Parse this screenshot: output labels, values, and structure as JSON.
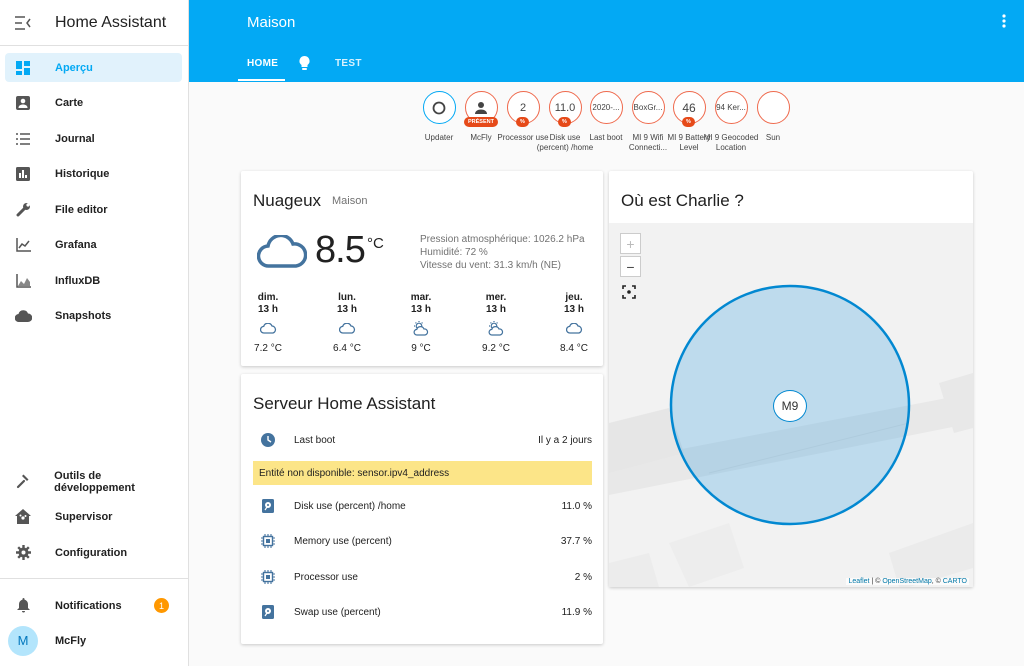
{
  "app": {
    "title": "Home Assistant"
  },
  "sidebar": {
    "items": [
      {
        "label": "Aperçu",
        "icon": "dashboard-icon"
      },
      {
        "label": "Carte",
        "icon": "account-box-icon"
      },
      {
        "label": "Journal",
        "icon": "list-icon"
      },
      {
        "label": "Historique",
        "icon": "chart-bar-icon"
      },
      {
        "label": "File editor",
        "icon": "wrench-icon"
      },
      {
        "label": "Grafana",
        "icon": "chart-line-icon"
      },
      {
        "label": "InfluxDB",
        "icon": "chart-area-icon"
      },
      {
        "label": "Snapshots",
        "icon": "cloud-icon"
      }
    ],
    "bottom": [
      {
        "label": "Outils de développement",
        "icon": "hammer-icon"
      },
      {
        "label": "Supervisor",
        "icon": "home-assistant-icon"
      },
      {
        "label": "Configuration",
        "icon": "cog-icon"
      }
    ],
    "notifications": {
      "label": "Notifications",
      "count": "1"
    },
    "user": {
      "label": "McFly",
      "initial": "M"
    }
  },
  "header": {
    "title": "Maison",
    "tabs": [
      {
        "label": "HOME"
      },
      {
        "label": "lightbulb-icon"
      },
      {
        "label": "TEST"
      }
    ]
  },
  "badges": [
    {
      "value": "",
      "icon": "circle-outline-icon",
      "name": "Updater",
      "chip": ""
    },
    {
      "value": "",
      "icon": "person-icon",
      "name": "McFly",
      "chip": "PRÉSENT"
    },
    {
      "value": "2",
      "name": "Processor use",
      "chip": "%"
    },
    {
      "value": "11.0",
      "name": "Disk use (percent) /home",
      "chip": "%"
    },
    {
      "value": "2020-...",
      "name": "Last boot",
      "chip": ""
    },
    {
      "value": "BoxGr...",
      "name": "MI 9 Wifi Connecti...",
      "chip": ""
    },
    {
      "value": "46",
      "name": "MI 9 Battery Level",
      "chip": "%"
    },
    {
      "value": "94 Ker...",
      "name": "MI 9 Geocoded Location",
      "chip": ""
    },
    {
      "value": "",
      "icon": "moon-icon",
      "name": "Sun",
      "chip": ""
    }
  ],
  "weather": {
    "condition": "Nuageux",
    "location": "Maison",
    "temperature": "8.5",
    "unit": "°C",
    "attributes": [
      "Pression atmosphérique: 1026.2 hPa",
      "Humidité: 72 %",
      "Vitesse du vent: 31.3 km/h (NE)"
    ],
    "forecast": [
      {
        "day": "dim.",
        "hour": "13 h",
        "icon": "cloudy-icon",
        "temp": "7.2 °C"
      },
      {
        "day": "lun.",
        "hour": "13 h",
        "icon": "cloudy-icon",
        "temp": "6.4 °C"
      },
      {
        "day": "mar.",
        "hour": "13 h",
        "icon": "partly-cloudy-icon",
        "temp": "9 °C"
      },
      {
        "day": "mer.",
        "hour": "13 h",
        "icon": "partly-cloudy-icon",
        "temp": "9.2 °C"
      },
      {
        "day": "jeu.",
        "hour": "13 h",
        "icon": "cloudy-icon",
        "temp": "8.4 °C"
      }
    ]
  },
  "server": {
    "title": "Serveur Home Assistant",
    "rows": [
      {
        "name": "Last boot",
        "value": "Il y a 2 jours",
        "icon": "clock-icon"
      },
      {
        "name": "Disk use (percent) /home",
        "value": "11.0 %",
        "icon": "harddisk-icon"
      },
      {
        "name": "Memory use (percent)",
        "value": "37.7 %",
        "icon": "memory-icon"
      },
      {
        "name": "Processor use",
        "value": "2 %",
        "icon": "chip-icon"
      },
      {
        "name": "Swap use (percent)",
        "value": "11.9 %",
        "icon": "harddisk-icon"
      }
    ],
    "warning": "Entité non disponible: sensor.ipv4_address"
  },
  "map": {
    "title": "Où est Charlie ?",
    "marker": "M9",
    "zoom_in": "+",
    "zoom_out": "−",
    "attribution": {
      "leaflet": "Leaflet",
      "sep1": " | © ",
      "osm": "OpenStreetMap",
      "sep2": ", © ",
      "carto": "CARTO"
    }
  }
}
